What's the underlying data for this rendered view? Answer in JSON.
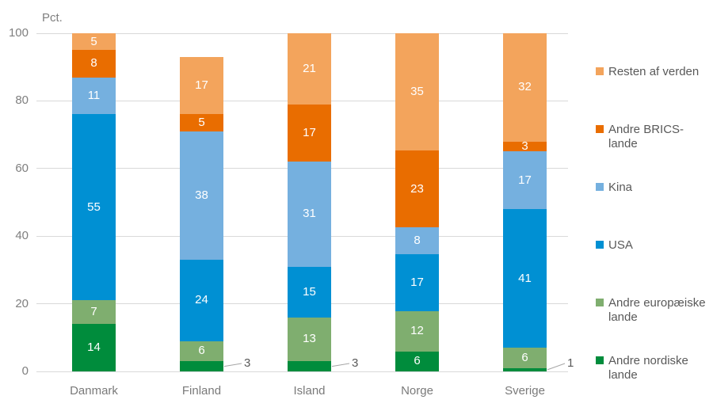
{
  "chart_data": {
    "type": "bar",
    "stacked": true,
    "ylabel": "Pct.",
    "ylim": [
      0,
      100
    ],
    "yticks": [
      0,
      20,
      40,
      60,
      80,
      100
    ],
    "grid": true,
    "legend_position": "right",
    "categories": [
      "Danmark",
      "Finland",
      "Island",
      "Norge",
      "Sverige"
    ],
    "series": [
      {
        "name": "Andre nordiske lande",
        "color": "#008c3c",
        "values": [
          14,
          3,
          3,
          6,
          1
        ]
      },
      {
        "name": "Andre europæiske lande",
        "color": "#7fae6f",
        "values": [
          7,
          6,
          13,
          12,
          6
        ]
      },
      {
        "name": "USA",
        "color": "#0090d3",
        "values": [
          55,
          24,
          15,
          17,
          41
        ]
      },
      {
        "name": "Kina",
        "color": "#75b0df",
        "values": [
          11,
          38,
          31,
          8,
          17
        ]
      },
      {
        "name": "Andre BRICS-lande",
        "color": "#e96d00",
        "values": [
          8,
          5,
          17,
          23,
          3
        ]
      },
      {
        "name": "Resten af verden",
        "color": "#f3a45c",
        "values": [
          5,
          17,
          21,
          35,
          32
        ]
      }
    ],
    "legend_order": [
      "Resten af verden",
      "Andre BRICS-lande",
      "Kina",
      "USA",
      "Andre europæiske lande",
      "Andre nordiske lande"
    ],
    "callouts": [
      {
        "category": "Finland",
        "series": "Andre nordiske lande",
        "label": "3"
      },
      {
        "category": "Island",
        "series": "Andre nordiske lande",
        "label": "3"
      },
      {
        "category": "Sverige",
        "series": "Andre nordiske lande",
        "label": "1"
      }
    ],
    "colors": {
      "grid": "#d9d9d9",
      "axis_text": "#7f7f7f",
      "legend_text": "#595959",
      "callout_line": "#a6a6a6",
      "bar_value_text": "#ffffff"
    }
  }
}
